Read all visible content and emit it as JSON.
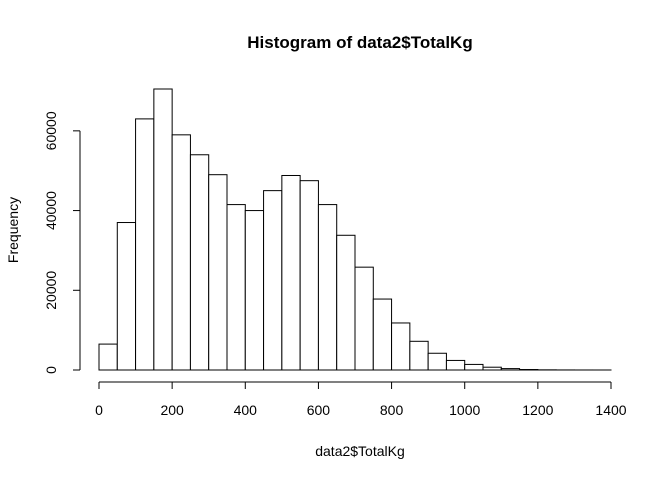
{
  "chart_data": {
    "type": "bar",
    "title": "Histogram of data2$TotalKg",
    "xlabel": "data2$TotalKg",
    "ylabel": "Frequency",
    "bin_width": 50,
    "bins": [
      {
        "x0": 0,
        "x1": 50,
        "count": 6500
      },
      {
        "x0": 50,
        "x1": 100,
        "count": 37000
      },
      {
        "x0": 100,
        "x1": 150,
        "count": 63000
      },
      {
        "x0": 150,
        "x1": 200,
        "count": 70500
      },
      {
        "x0": 200,
        "x1": 250,
        "count": 59000
      },
      {
        "x0": 250,
        "x1": 300,
        "count": 54000
      },
      {
        "x0": 300,
        "x1": 350,
        "count": 49000
      },
      {
        "x0": 350,
        "x1": 400,
        "count": 41500
      },
      {
        "x0": 400,
        "x1": 450,
        "count": 40000
      },
      {
        "x0": 450,
        "x1": 500,
        "count": 45000
      },
      {
        "x0": 500,
        "x1": 550,
        "count": 48800
      },
      {
        "x0": 550,
        "x1": 600,
        "count": 47500
      },
      {
        "x0": 600,
        "x1": 650,
        "count": 41500
      },
      {
        "x0": 650,
        "x1": 700,
        "count": 33800
      },
      {
        "x0": 700,
        "x1": 750,
        "count": 25800
      },
      {
        "x0": 750,
        "x1": 800,
        "count": 17800
      },
      {
        "x0": 800,
        "x1": 850,
        "count": 11800
      },
      {
        "x0": 850,
        "x1": 900,
        "count": 7200
      },
      {
        "x0": 900,
        "x1": 950,
        "count": 4200
      },
      {
        "x0": 950,
        "x1": 1000,
        "count": 2400
      },
      {
        "x0": 1000,
        "x1": 1050,
        "count": 1400
      },
      {
        "x0": 1050,
        "x1": 1100,
        "count": 700
      },
      {
        "x0": 1100,
        "x1": 1150,
        "count": 350
      },
      {
        "x0": 1150,
        "x1": 1200,
        "count": 120
      },
      {
        "x0": 1200,
        "x1": 1250,
        "count": 40
      },
      {
        "x0": 1250,
        "x1": 1300,
        "count": 15
      },
      {
        "x0": 1300,
        "x1": 1350,
        "count": 5
      },
      {
        "x0": 1350,
        "x1": 1400,
        "count": 2
      }
    ],
    "xlim": [
      0,
      1400
    ],
    "ylim": [
      0,
      70500
    ],
    "x_ticks": [
      0,
      200,
      400,
      600,
      800,
      1000,
      1200,
      1400
    ],
    "x_tick_labels": [
      "0",
      "200",
      "400",
      "600",
      "800",
      "1000",
      "1200",
      "1400"
    ],
    "y_ticks": [
      0,
      20000,
      40000,
      60000
    ],
    "y_tick_labels": [
      "0",
      "20000",
      "40000",
      "60000"
    ],
    "grid": false,
    "legend": "none"
  }
}
